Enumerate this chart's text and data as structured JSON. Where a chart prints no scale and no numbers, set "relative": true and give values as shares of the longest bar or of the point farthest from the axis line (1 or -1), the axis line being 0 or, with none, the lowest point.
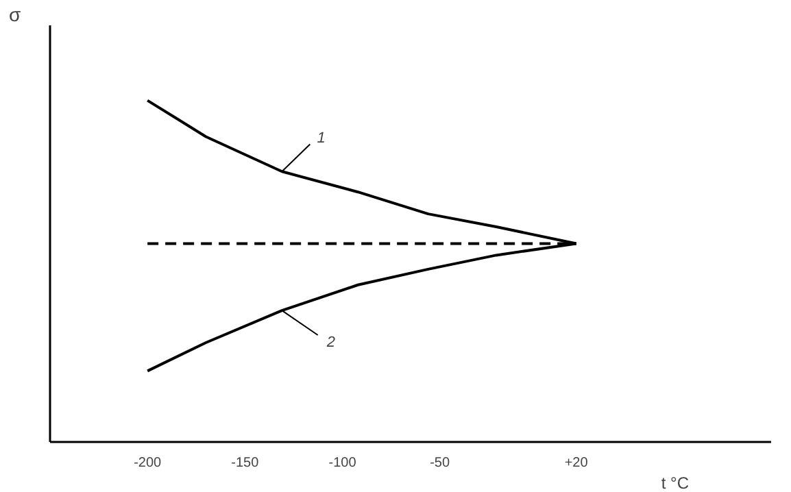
{
  "chart_data": {
    "type": "line",
    "relative": true,
    "xlabel": "t °C",
    "ylabel": "σ",
    "xlim": [
      -250,
      120
    ],
    "xticks": [
      -200,
      -150,
      -100,
      -50,
      {
        "value": 20,
        "label": "+20"
      }
    ],
    "tick_labels": "x",
    "grid": false,
    "legend": false,
    "marker": "none",
    "series": [
      {
        "name": "1",
        "color": "#000000",
        "x": [
          -200,
          -170,
          -131,
          -92,
          -56,
          -21,
          20
        ],
        "values": [
          1,
          0.894,
          0.792,
          0.732,
          0.668,
          0.63,
          0.581
        ]
      },
      {
        "name": "2",
        "color": "#000000",
        "x": [
          -200,
          -170,
          -131,
          -92,
          -56,
          -21,
          20
        ],
        "values": [
          0.208,
          0.291,
          0.385,
          0.46,
          0.506,
          0.547,
          0.581
        ]
      },
      {
        "color": "#000000",
        "line_style": "dashed",
        "x": [
          -200,
          20
        ],
        "values": [
          0.581,
          0.581
        ]
      }
    ]
  }
}
